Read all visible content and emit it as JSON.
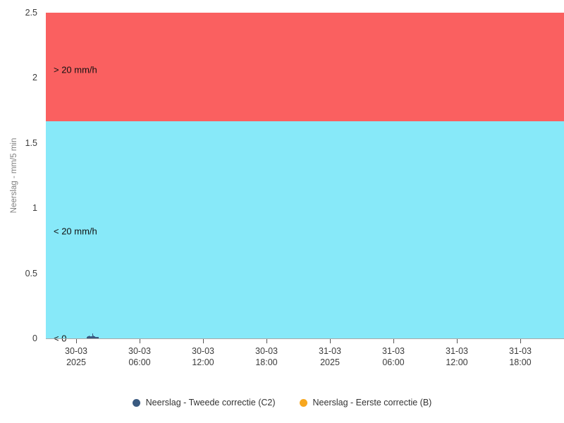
{
  "chart_data": {
    "type": "bar",
    "title": "",
    "xlabel": "",
    "ylabel": "Neerslag - mm/5 min",
    "ylim": [
      0,
      2.5
    ],
    "grid": false,
    "legend_position": "bottom-center",
    "yticks": [
      "0",
      "0.5",
      "1",
      "1.5",
      "2",
      "2.5"
    ],
    "xticks": [
      [
        "30-03",
        "2025"
      ],
      [
        "30-03",
        "06:00"
      ],
      [
        "30-03",
        "12:00"
      ],
      [
        "30-03",
        "18:00"
      ],
      [
        "31-03",
        "2025"
      ],
      [
        "31-03",
        "06:00"
      ],
      [
        "31-03",
        "12:00"
      ],
      [
        "31-03",
        "18:00"
      ]
    ],
    "bands": [
      {
        "label": "> 20 mm/h",
        "from": 1.6667,
        "to": 2.5,
        "color": "#fa6060"
      },
      {
        "label": "< 20 mm/h",
        "from": 0,
        "to": 1.6667,
        "color": "#87e9f9"
      },
      {
        "label": "< 0",
        "from": 0,
        "to": 0,
        "color": "#ffffff"
      }
    ],
    "series": [
      {
        "name": "Neerslag - Tweede correctie (C2)",
        "color": "#3a5a80",
        "unit": "mm/5 min",
        "points": [
          {
            "time": "30-03 01:00",
            "minutes": 60,
            "value": 0.012
          },
          {
            "time": "30-03 01:05",
            "minutes": 65,
            "value": 0.018
          },
          {
            "time": "30-03 01:10",
            "minutes": 70,
            "value": 0.022
          },
          {
            "time": "30-03 01:15",
            "minutes": 75,
            "value": 0.016
          },
          {
            "time": "30-03 01:20",
            "minutes": 80,
            "value": 0.014
          },
          {
            "time": "30-03 01:25",
            "minutes": 85,
            "value": 0.016
          },
          {
            "time": "30-03 01:30",
            "minutes": 90,
            "value": 0.04
          },
          {
            "time": "30-03 01:35",
            "minutes": 95,
            "value": 0.022
          },
          {
            "time": "30-03 01:40",
            "minutes": 100,
            "value": 0.014
          },
          {
            "time": "30-03 01:45",
            "minutes": 105,
            "value": 0.012
          },
          {
            "time": "30-03 01:50",
            "minutes": 110,
            "value": 0.012
          },
          {
            "time": "30-03 01:55",
            "minutes": 115,
            "value": 0.012
          },
          {
            "time": "30-03 02:00",
            "minutes": 120,
            "value": 0.01
          }
        ]
      },
      {
        "name": "Neerslag - Eerste correctie (B)",
        "color": "#f7a71f",
        "unit": "mm/5 min",
        "points": []
      }
    ]
  },
  "legend": {
    "items": [
      {
        "label": "Neerslag - Tweede correctie (C2)",
        "color": "#3a5a80"
      },
      {
        "label": "Neerslag - Eerste correctie (B)",
        "color": "#f7a71f"
      }
    ]
  }
}
